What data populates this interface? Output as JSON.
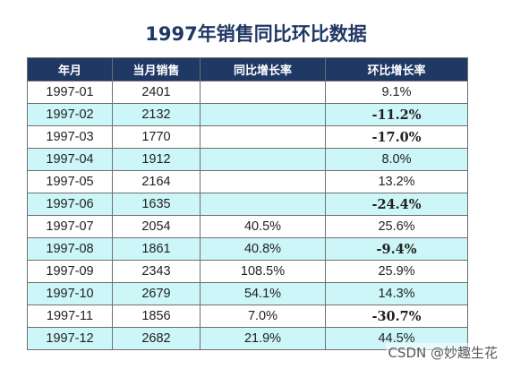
{
  "title": "1997年销售同比环比数据",
  "table": {
    "headers": [
      "年月",
      "当月销售",
      "同比增长率",
      "环比增长率"
    ],
    "rows": [
      {
        "month": "1997-01",
        "sales": "2401",
        "yoy": "",
        "mom": "9.1%",
        "mom_negative": false
      },
      {
        "month": "1997-02",
        "sales": "2132",
        "yoy": "",
        "mom": "-11.2%",
        "mom_negative": true
      },
      {
        "month": "1997-03",
        "sales": "1770",
        "yoy": "",
        "mom": "-17.0%",
        "mom_negative": true
      },
      {
        "month": "1997-04",
        "sales": "1912",
        "yoy": "",
        "mom": "8.0%",
        "mom_negative": false
      },
      {
        "month": "1997-05",
        "sales": "2164",
        "yoy": "",
        "mom": "13.2%",
        "mom_negative": false
      },
      {
        "month": "1997-06",
        "sales": "1635",
        "yoy": "",
        "mom": "-24.4%",
        "mom_negative": true
      },
      {
        "month": "1997-07",
        "sales": "2054",
        "yoy": "40.5%",
        "mom": "25.6%",
        "mom_negative": false
      },
      {
        "month": "1997-08",
        "sales": "1861",
        "yoy": "40.8%",
        "mom": "-9.4%",
        "mom_negative": true
      },
      {
        "month": "1997-09",
        "sales": "2343",
        "yoy": "108.5%",
        "mom": "25.9%",
        "mom_negative": false
      },
      {
        "month": "1997-10",
        "sales": "2679",
        "yoy": "54.1%",
        "mom": "14.3%",
        "mom_negative": false
      },
      {
        "month": "1997-11",
        "sales": "1856",
        "yoy": "7.0%",
        "mom": "-30.7%",
        "mom_negative": true
      },
      {
        "month": "1997-12",
        "sales": "2682",
        "yoy": "21.9%",
        "mom": "44.5%",
        "mom_negative": false
      }
    ]
  },
  "colors": {
    "header_bg": "#1f3864",
    "alt_row_bg": "#ccf6f8",
    "negative_text": "#e8242a"
  },
  "watermark": "CSDN @妙趣生花"
}
